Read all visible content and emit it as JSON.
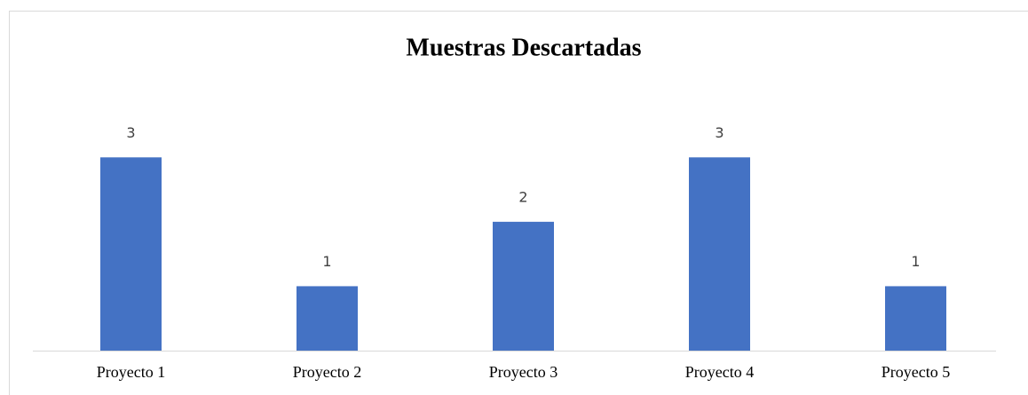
{
  "chart_data": {
    "type": "bar",
    "title": "Muestras Descartadas",
    "categories": [
      "Proyecto 1",
      "Proyecto 2",
      "Proyecto 3",
      "Proyecto 4",
      "Proyecto 5"
    ],
    "values": [
      3,
      1,
      2,
      3,
      1
    ],
    "color": "#4472c4",
    "ylim": [
      0,
      3.5
    ]
  }
}
